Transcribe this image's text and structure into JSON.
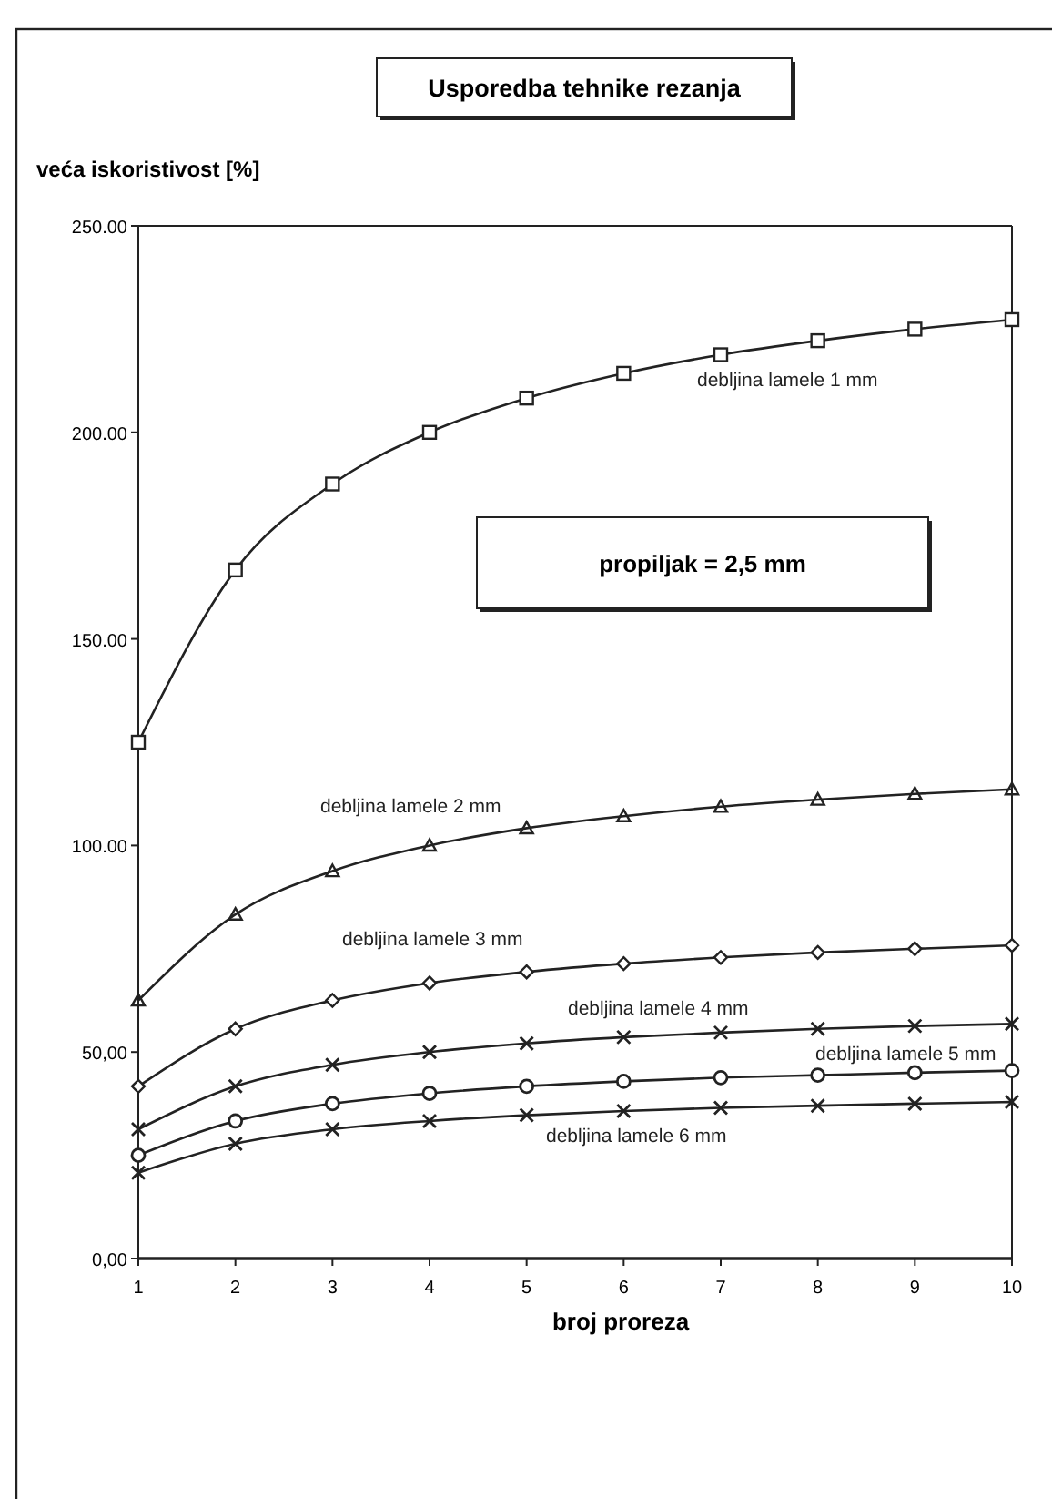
{
  "chart_data": {
    "type": "line",
    "title": "Usporedba tehnike rezanja",
    "xlabel": "broj proreza",
    "ylabel": "veća iskoristivost [%]",
    "x": [
      1,
      2,
      3,
      4,
      5,
      6,
      7,
      8,
      9,
      10
    ],
    "xlim": [
      1,
      10
    ],
    "xticks": [
      1,
      2,
      3,
      4,
      5,
      6,
      7,
      8,
      9,
      10
    ],
    "ylim": [
      0,
      250
    ],
    "yticks": [
      {
        "value": 0,
        "label": "0,00"
      },
      {
        "value": 50,
        "label": "50,00"
      },
      {
        "value": 100,
        "label": "100.00"
      },
      {
        "value": 150,
        "label": "150.00"
      },
      {
        "value": 200,
        "label": "200.00"
      },
      {
        "value": 250,
        "label": "250.00"
      }
    ],
    "annotations": [
      "propiljak = 2,5 mm"
    ],
    "grid": false,
    "line_style": "solid",
    "series": [
      {
        "name": "debljina lamele 1 mm",
        "color": "#222222",
        "marker": "square",
        "values": [
          125,
          166.7,
          187.5,
          200,
          208.3,
          214.3,
          218.8,
          222.2,
          225,
          227.3
        ]
      },
      {
        "name": "debljina lamele 2 mm",
        "color": "#222222",
        "marker": "triangle",
        "values": [
          62.5,
          83.3,
          93.8,
          100,
          104.2,
          107.1,
          109.4,
          111.1,
          112.5,
          113.6
        ]
      },
      {
        "name": "debljina lamele 3 mm",
        "color": "#222222",
        "marker": "diamond",
        "values": [
          41.7,
          55.6,
          62.5,
          66.7,
          69.4,
          71.4,
          72.9,
          74.1,
          75,
          75.8
        ]
      },
      {
        "name": "debljina lamele 4 mm",
        "color": "#222222",
        "marker": "cross",
        "values": [
          31.3,
          41.7,
          46.9,
          50,
          52.1,
          53.6,
          54.7,
          55.6,
          56.3,
          56.8
        ]
      },
      {
        "name": "debljina lamele 5 mm",
        "color": "#222222",
        "marker": "circle",
        "values": [
          25,
          33.3,
          37.5,
          40,
          41.7,
          42.9,
          43.8,
          44.4,
          45,
          45.5
        ]
      },
      {
        "name": "debljina lamele 6 mm",
        "color": "#222222",
        "marker": "cross",
        "values": [
          20.8,
          27.8,
          31.3,
          33.3,
          34.7,
          35.7,
          36.5,
          37,
          37.5,
          37.9
        ]
      }
    ]
  }
}
